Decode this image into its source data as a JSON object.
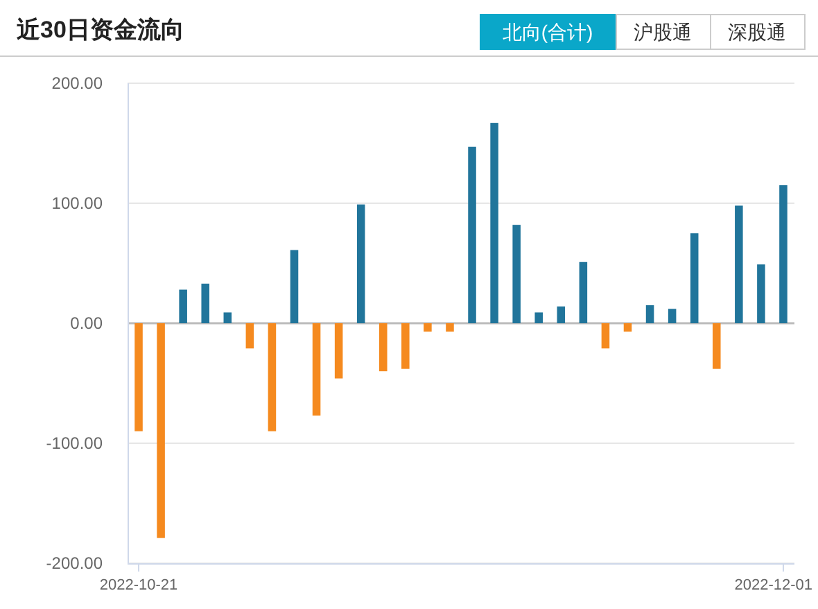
{
  "chart_data": {
    "type": "bar",
    "title": "近30日资金流向",
    "annotations": [
      "北向(合计)",
      "沪股通",
      "深股通"
    ],
    "categories": [
      "2022-10-21",
      null,
      null,
      null,
      null,
      null,
      null,
      null,
      null,
      null,
      null,
      null,
      null,
      null,
      null,
      null,
      null,
      null,
      null,
      null,
      null,
      null,
      null,
      null,
      null,
      null,
      null,
      null,
      null,
      "2022-12-01"
    ],
    "values": [
      -90,
      -179,
      28,
      33,
      9,
      -21,
      -90,
      61,
      -77,
      -46,
      99,
      -40,
      -38,
      -7,
      -7,
      147,
      167,
      82,
      9,
      14,
      51,
      -21,
      -7,
      15,
      12,
      75,
      -38,
      98,
      49,
      115
    ],
    "colors": [
      "#f58a1f",
      "#f58a1f",
      "#21759b",
      "#21759b",
      "#21759b",
      "#f58a1f",
      "#f58a1f",
      "#21759b",
      "#f58a1f",
      "#f58a1f",
      "#21759b",
      "#f58a1f",
      "#f58a1f",
      "#f58a1f",
      "#f58a1f",
      "#21759b",
      "#21759b",
      "#21759b",
      "#21759b",
      "#21759b",
      "#21759b",
      "#f58a1f",
      "#f58a1f",
      "#21759b",
      "#21759b",
      "#21759b",
      "#f58a1f",
      "#21759b",
      "#21759b",
      "#21759b"
    ],
    "ylim": [
      -200,
      200
    ],
    "yticks": [
      {
        "value": -200,
        "label": "-200.00"
      },
      {
        "value": -100,
        "label": "-100.00"
      },
      {
        "value": 0,
        "label": "0.00"
      },
      {
        "value": 100,
        "label": "100.00"
      },
      {
        "value": 200,
        "label": "200.00"
      }
    ],
    "grid": "y"
  }
}
